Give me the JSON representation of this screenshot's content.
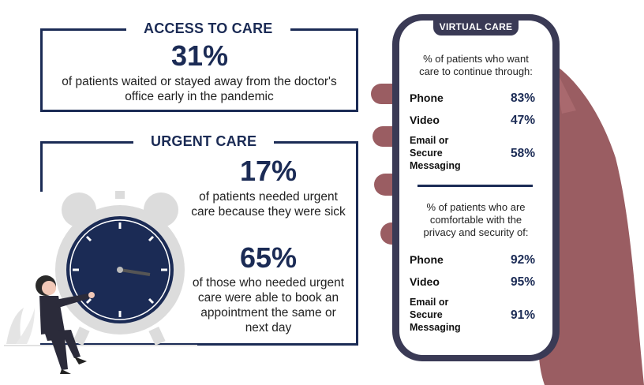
{
  "access": {
    "title": "ACCESS TO CARE",
    "stat": "31%",
    "desc_line1": "of patients waited or stayed away from the doctor's",
    "desc_line2": "office early in the pandemic"
  },
  "urgent": {
    "title": "URGENT CARE",
    "stat1": "17%",
    "desc1_line1": "of patients needed urgent",
    "desc1_line2": "care because they were sick",
    "stat2": "65%",
    "desc2_line1": "of those who needed urgent",
    "desc2_line2": "care were able to book an",
    "desc2_line3": "appointment the same or",
    "desc2_line4": "next day"
  },
  "virtual": {
    "tab": "VIRTUAL CARE",
    "q1_line1": "% of patients who want",
    "q1_line2": "care to continue through:",
    "q1_items": [
      {
        "label": "Phone",
        "value": "83%"
      },
      {
        "label": "Video",
        "value": "47%"
      },
      {
        "label_lines": [
          "Email or",
          "Secure",
          "Messaging"
        ],
        "value": "58%"
      }
    ],
    "q2_line1": "% of patients who are",
    "q2_line2": "comfortable with the",
    "q2_line3": "privacy and security of:",
    "q2_items": [
      {
        "label": "Phone",
        "value": "92%"
      },
      {
        "label": "Video",
        "value": "95%"
      },
      {
        "label_lines": [
          "Email or",
          "Secure",
          "Messaging"
        ],
        "value": "91%"
      }
    ]
  },
  "colors": {
    "navy": "#1b2b55",
    "phone_frame": "#3a3a55",
    "hand": "#9a5d62",
    "clock_grey": "#dcdcdc"
  },
  "icons": [
    "alarm-clock-icon",
    "person-illustration",
    "hand-illustration"
  ]
}
